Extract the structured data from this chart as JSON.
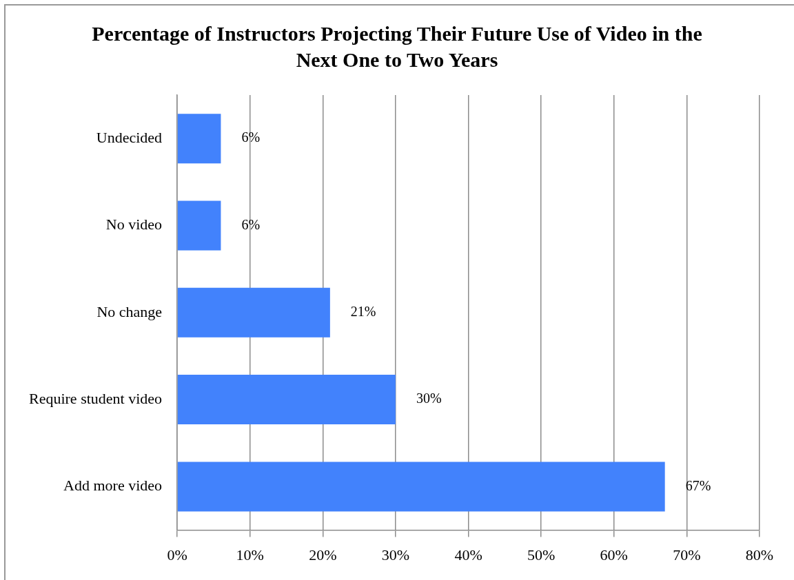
{
  "chart_data": {
    "type": "bar",
    "orientation": "horizontal",
    "title": "Percentage of Instructors Projecting Their Future Use of Video in the Next One to Two Years",
    "categories": [
      "Undecided",
      "No video",
      "No change",
      "Require student video",
      "Add more video"
    ],
    "values": [
      6,
      6,
      21,
      30,
      67
    ],
    "color": "#4282fc",
    "value_labels": [
      "6%",
      "6%",
      "21%",
      "30%",
      "67%"
    ],
    "xlim": [
      0,
      80
    ],
    "xticks": [
      {
        "value": 0,
        "label": "0%"
      },
      {
        "value": 10,
        "label": "10%"
      },
      {
        "value": 20,
        "label": "20%"
      },
      {
        "value": 30,
        "label": "30%"
      },
      {
        "value": 40,
        "label": "40%"
      },
      {
        "value": 50,
        "label": "50%"
      },
      {
        "value": 60,
        "label": "60%"
      },
      {
        "value": 70,
        "label": "70%"
      },
      {
        "value": 80,
        "label": "80%"
      }
    ],
    "grid": "x",
    "legend": false
  }
}
